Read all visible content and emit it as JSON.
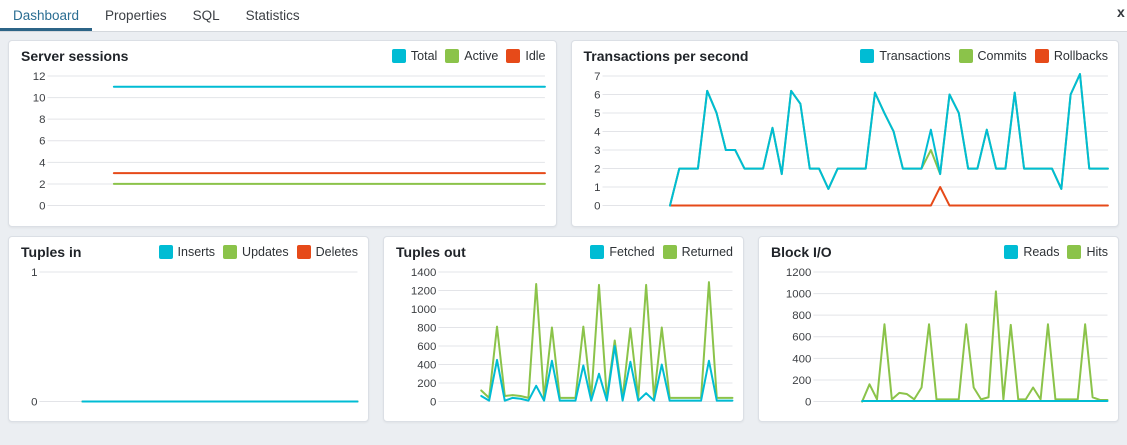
{
  "tabs": [
    {
      "label": "Dashboard",
      "active": true
    },
    {
      "label": "Properties",
      "active": false
    },
    {
      "label": "SQL",
      "active": false
    },
    {
      "label": "Statistics",
      "active": false
    }
  ],
  "window": {
    "close_icon": "x"
  },
  "colors": {
    "cyan": "#00BCD4",
    "green": "#8BC34A",
    "orange": "#E64A19",
    "active_tab": "#2a6d92",
    "tab_underline": "#2c6487"
  },
  "chart_data": [
    {
      "type": "line",
      "title": "Server sessions",
      "xlabel": "",
      "ylabel": "",
      "ylim": [
        0,
        12
      ],
      "yticks": [
        0,
        2,
        4,
        6,
        8,
        10,
        12
      ],
      "grid": true,
      "legend_position": "top-right",
      "x_start": 0.13,
      "series": [
        {
          "name": "Total",
          "color": "#00BCD4",
          "values": [
            11,
            11
          ]
        },
        {
          "name": "Active",
          "color": "#8BC34A",
          "values": [
            2,
            2
          ]
        },
        {
          "name": "Idle",
          "color": "#E64A19",
          "values": [
            3,
            3
          ]
        }
      ]
    },
    {
      "type": "line",
      "title": "Transactions per second",
      "xlabel": "",
      "ylabel": "",
      "ylim": [
        0,
        7
      ],
      "yticks": [
        0,
        1,
        2,
        3,
        4,
        5,
        6,
        7
      ],
      "grid": true,
      "legend_position": "top-right",
      "x_start": 0.13,
      "series": [
        {
          "name": "Transactions",
          "color": "#00BCD4",
          "values": [
            0,
            2,
            2,
            2,
            6.2,
            5,
            3,
            3,
            2,
            2,
            2,
            4.2,
            1.7,
            6.2,
            5.5,
            2,
            2,
            0.9,
            2,
            2,
            2,
            2,
            6.1,
            5,
            4,
            2,
            2,
            2,
            4.1,
            1.7,
            6,
            5,
            2,
            2,
            4.1,
            2,
            2,
            6.1,
            2,
            2,
            2,
            2,
            0.9,
            6,
            7.1,
            2,
            2,
            2
          ]
        },
        {
          "name": "Commits",
          "color": "#8BC34A",
          "values": [
            0,
            2,
            2,
            2,
            6.2,
            5,
            3,
            3,
            2,
            2,
            2,
            4.2,
            1.7,
            6.2,
            5.5,
            2,
            2,
            0.9,
            2,
            2,
            2,
            2,
            6.1,
            5,
            4,
            2,
            2,
            2,
            3,
            1.7,
            6,
            5,
            2,
            2,
            4.1,
            2,
            2,
            6.1,
            2,
            2,
            2,
            2,
            0.9,
            6,
            7.1,
            2,
            2,
            2
          ]
        },
        {
          "name": "Rollbacks",
          "color": "#E64A19",
          "values": [
            0,
            0,
            0,
            0,
            0,
            0,
            0,
            0,
            0,
            0,
            0,
            0,
            0,
            0,
            0,
            0,
            0,
            0,
            0,
            0,
            0,
            0,
            0,
            0,
            0,
            0,
            0,
            0,
            0,
            1,
            0,
            0,
            0,
            0,
            0,
            0,
            0,
            0,
            0,
            0,
            0,
            0,
            0,
            0,
            0,
            0,
            0,
            0
          ]
        }
      ]
    },
    {
      "type": "line",
      "title": "Tuples in",
      "xlabel": "",
      "ylabel": "",
      "ylim": [
        0,
        1
      ],
      "yticks": [
        0,
        1
      ],
      "grid": true,
      "legend_position": "top-right",
      "x_start": 0.13,
      "series": [
        {
          "name": "Inserts",
          "color": "#00BCD4",
          "values": [
            0,
            0
          ]
        },
        {
          "name": "Updates",
          "color": "#8BC34A",
          "values": [
            0,
            0
          ]
        },
        {
          "name": "Deletes",
          "color": "#E64A19",
          "values": [
            0,
            0
          ]
        }
      ]
    },
    {
      "type": "line",
      "title": "Tuples out",
      "xlabel": "",
      "ylabel": "",
      "ylim": [
        0,
        1400
      ],
      "yticks": [
        0,
        200,
        400,
        600,
        800,
        1000,
        1200,
        1400
      ],
      "grid": true,
      "legend_position": "top-right",
      "x_start": 0.14,
      "series": [
        {
          "name": "Fetched",
          "color": "#00BCD4",
          "values": [
            60,
            10,
            450,
            10,
            40,
            30,
            10,
            170,
            10,
            440,
            10,
            10,
            10,
            390,
            10,
            300,
            10,
            600,
            10,
            430,
            10,
            90,
            10,
            400,
            10,
            10,
            10,
            10,
            10,
            440,
            10,
            10,
            10
          ]
        },
        {
          "name": "Returned",
          "color": "#8BC34A",
          "values": [
            120,
            40,
            810,
            60,
            70,
            60,
            40,
            1270,
            40,
            800,
            40,
            40,
            40,
            810,
            40,
            1260,
            40,
            660,
            40,
            790,
            40,
            1260,
            40,
            800,
            40,
            40,
            40,
            40,
            40,
            1290,
            40,
            40,
            40
          ]
        }
      ]
    },
    {
      "type": "line",
      "title": "Block I/O",
      "xlabel": "",
      "ylabel": "",
      "ylim": [
        0,
        1200
      ],
      "yticks": [
        0,
        200,
        400,
        600,
        800,
        1000,
        1200
      ],
      "grid": true,
      "legend_position": "top-right",
      "x_start": 0.16,
      "series": [
        {
          "name": "Reads",
          "color": "#00BCD4",
          "values": [
            5,
            5
          ]
        },
        {
          "name": "Hits",
          "color": "#8BC34A",
          "values": [
            0,
            160,
            20,
            715,
            20,
            80,
            70,
            20,
            130,
            715,
            20,
            20,
            20,
            20,
            715,
            130,
            20,
            40,
            1020,
            20,
            710,
            20,
            20,
            130,
            20,
            715,
            20,
            20,
            20,
            20,
            715,
            40,
            15,
            15
          ]
        }
      ]
    }
  ]
}
